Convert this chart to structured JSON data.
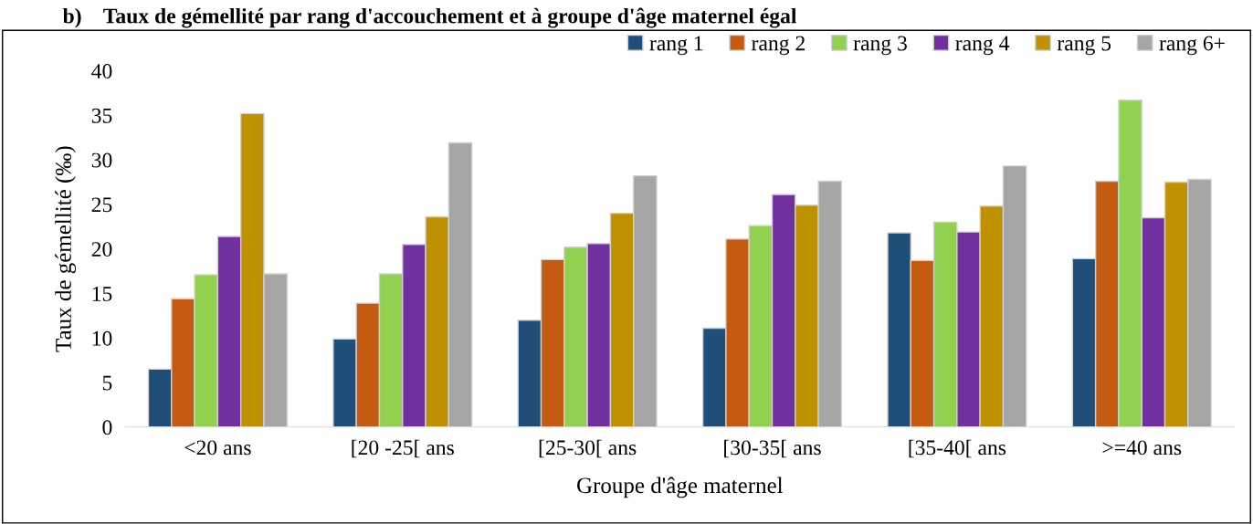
{
  "chart_data": {
    "type": "bar",
    "title": "b)    Taux de gémellité par rang d'accouchement et à groupe d'âge maternel égal",
    "xlabel": "Groupe d'âge maternel",
    "ylabel": "Taux de gémellité (‰)",
    "categories": [
      "<20 ans",
      "[20 -25[ ans",
      "[25-30[ ans",
      "[30-35[ ans",
      "[35-40[ ans",
      ">=40 ans"
    ],
    "series": [
      {
        "name": "rang 1",
        "color": "#1f4e79",
        "values": [
          6.5,
          9.9,
          12.0,
          11.1,
          21.8,
          18.9
        ]
      },
      {
        "name": "rang 2",
        "color": "#c55a11",
        "values": [
          14.4,
          13.9,
          18.8,
          21.1,
          18.7,
          27.6
        ]
      },
      {
        "name": "rang 3",
        "color": "#92d050",
        "values": [
          17.1,
          17.2,
          20.2,
          22.6,
          23.0,
          36.7
        ]
      },
      {
        "name": "rang 4",
        "color": "#7030a0",
        "values": [
          21.4,
          20.5,
          20.6,
          26.1,
          21.9,
          23.5
        ]
      },
      {
        "name": "rang 5",
        "color": "#bf9000",
        "values": [
          35.2,
          23.6,
          24.0,
          24.9,
          24.8,
          27.5
        ]
      },
      {
        "name": "rang 6+",
        "color": "#a5a5a5",
        "values": [
          17.2,
          31.9,
          28.2,
          27.6,
          29.3,
          27.8
        ]
      }
    ],
    "ylim": [
      0,
      40
    ],
    "yticks": [
      0,
      5,
      10,
      15,
      20,
      25,
      30,
      35,
      40
    ],
    "grid": false,
    "legend": "top right"
  }
}
